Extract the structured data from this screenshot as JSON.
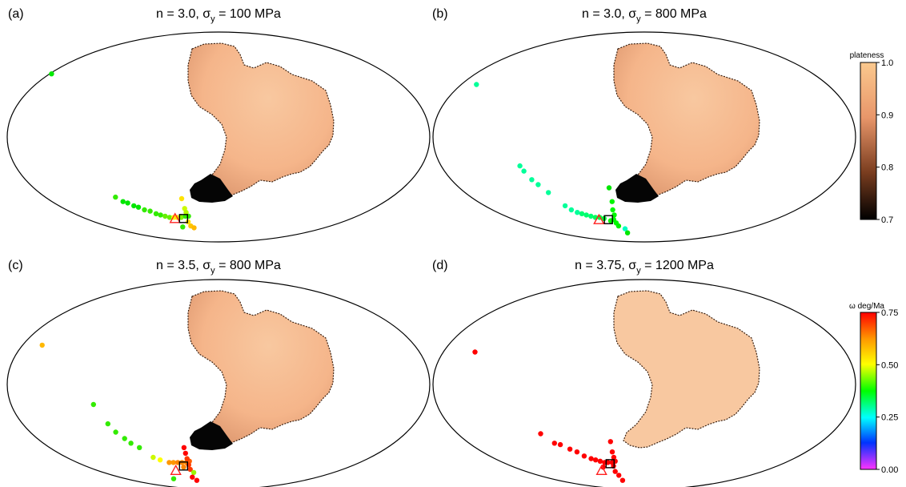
{
  "colors": {
    "plate_fill": "#f5b58a",
    "plate_light": "#f8c8a0",
    "plate_shadow": "#c9835a",
    "boundary": "#000000",
    "triangle": "#ff2020",
    "square_fill": "#00c8c8",
    "plateness_top": "#f8c68c",
    "plateness_bottom": "#000000"
  },
  "chart_data": [
    {
      "type": "map",
      "panel": "(a)",
      "title_prefix": "n = 3.0, σ",
      "title_sub": "y",
      "title_suffix": " = 100 MPa",
      "has_dark_region": true,
      "pole_points": [
        {
          "lon": -150,
          "lat": 37,
          "omega": 0.48
        },
        {
          "lon": -92,
          "lat": -35,
          "omega": 0.52
        },
        {
          "lon": -86,
          "lat": -38,
          "omega": 0.5
        },
        {
          "lon": -82,
          "lat": -39,
          "omega": 0.5
        },
        {
          "lon": -77,
          "lat": -41,
          "omega": 0.5
        },
        {
          "lon": -73,
          "lat": -42,
          "omega": 0.5
        },
        {
          "lon": -68,
          "lat": -44,
          "omega": 0.52
        },
        {
          "lon": -63,
          "lat": -45,
          "omega": 0.52
        },
        {
          "lon": -58,
          "lat": -47,
          "omega": 0.52
        },
        {
          "lon": -54,
          "lat": -48,
          "omega": 0.52
        },
        {
          "lon": -50,
          "lat": -49,
          "omega": 0.54
        },
        {
          "lon": -46,
          "lat": -50,
          "omega": 0.54
        },
        {
          "lon": -42,
          "lat": -50,
          "omega": 0.6
        },
        {
          "lon": -39,
          "lat": -50,
          "omega": 0.62
        },
        {
          "lon": -35,
          "lat": -50,
          "omega": 0.55
        },
        {
          "lon": -31,
          "lat": -49,
          "omega": 0.52
        },
        {
          "lon": -28,
          "lat": -49,
          "omega": 0.52
        },
        {
          "lon": -33,
          "lat": -36,
          "omega": 0.62
        },
        {
          "lon": -31,
          "lat": -43,
          "omega": 0.58
        },
        {
          "lon": -30,
          "lat": -46,
          "omega": 0.57
        },
        {
          "lon": -29,
          "lat": -54,
          "omega": 0.62
        },
        {
          "lon": -27,
          "lat": -58,
          "omega": 0.64
        },
        {
          "lon": -24,
          "lat": -60,
          "omega": 0.65
        },
        {
          "lon": -35,
          "lat": -59,
          "omega": 0.52
        }
      ],
      "triangle": {
        "lon": -41,
        "lat": -51
      },
      "square": {
        "lon": -33,
        "lat": -51
      }
    },
    {
      "type": "map",
      "panel": "(b)",
      "title_prefix": "n = 3.0, σ",
      "title_sub": "y",
      "title_suffix": " = 800 MPa",
      "has_dark_region": true,
      "pole_points": [
        {
          "lon": -148,
          "lat": 30,
          "omega": 0.3
        },
        {
          "lon": -107,
          "lat": -16,
          "omega": 0.3
        },
        {
          "lon": -104,
          "lat": -19,
          "omega": 0.3
        },
        {
          "lon": -98,
          "lat": -24,
          "omega": 0.3
        },
        {
          "lon": -93,
          "lat": -27,
          "omega": 0.3
        },
        {
          "lon": -85,
          "lat": -32,
          "omega": 0.3
        },
        {
          "lon": -72,
          "lat": -41,
          "omega": 0.3
        },
        {
          "lon": -67,
          "lat": -44,
          "omega": 0.3
        },
        {
          "lon": -62,
          "lat": -46,
          "omega": 0.3
        },
        {
          "lon": -58,
          "lat": -47,
          "omega": 0.32
        },
        {
          "lon": -54,
          "lat": -48,
          "omega": 0.32
        },
        {
          "lon": -50,
          "lat": -49,
          "omega": 0.32
        },
        {
          "lon": -46,
          "lat": -50,
          "omega": 0.33
        },
        {
          "lon": -42,
          "lat": -50,
          "omega": 0.34
        },
        {
          "lon": -38,
          "lat": -51,
          "omega": 0.35
        },
        {
          "lon": -31,
          "lat": -29,
          "omega": 0.5
        },
        {
          "lon": -29,
          "lat": -38,
          "omega": 0.42
        },
        {
          "lon": -29,
          "lat": -44,
          "omega": 0.4
        },
        {
          "lon": -28,
          "lat": -48,
          "omega": 0.42
        },
        {
          "lon": -29,
          "lat": -52,
          "omega": 0.4
        },
        {
          "lon": -27,
          "lat": -55,
          "omega": 0.4
        },
        {
          "lon": -25,
          "lat": -58,
          "omega": 0.45
        },
        {
          "lon": -19,
          "lat": -61,
          "omega": 0.28
        },
        {
          "lon": -17,
          "lat": -66,
          "omega": 0.5
        },
        {
          "lon": -32,
          "lat": -53,
          "omega": 0.38
        }
      ],
      "triangle": {
        "lon": -43,
        "lat": -52
      },
      "square": {
        "lon": -34,
        "lat": -52
      }
    },
    {
      "type": "map",
      "panel": "(c)",
      "title_prefix": "n = 3.5, σ",
      "title_sub": "y",
      "title_suffix": " = 800 MPa",
      "has_dark_region": true,
      "pole_points": [
        {
          "lon": -153,
          "lat": 22,
          "omega": 0.65
        },
        {
          "lon": -107,
          "lat": -11,
          "omega": 0.52
        },
        {
          "lon": -96,
          "lat": -22,
          "omega": 0.52
        },
        {
          "lon": -90,
          "lat": -27,
          "omega": 0.52
        },
        {
          "lon": -83,
          "lat": -31,
          "omega": 0.52
        },
        {
          "lon": -78,
          "lat": -34,
          "omega": 0.52
        },
        {
          "lon": -71,
          "lat": -37,
          "omega": 0.52
        },
        {
          "lon": -60,
          "lat": -44,
          "omega": 0.58
        },
        {
          "lon": -54,
          "lat": -46,
          "omega": 0.6
        },
        {
          "lon": -46,
          "lat": -48,
          "omega": 0.67
        },
        {
          "lon": -42,
          "lat": -48,
          "omega": 0.67
        },
        {
          "lon": -38,
          "lat": -48,
          "omega": 0.68
        },
        {
          "lon": -34,
          "lat": -48,
          "omega": 0.68
        },
        {
          "lon": -30,
          "lat": -48,
          "omega": 0.68
        },
        {
          "lon": -27,
          "lat": -47,
          "omega": 0.7
        },
        {
          "lon": -31,
          "lat": -37,
          "omega": 0.75
        },
        {
          "lon": -30,
          "lat": -41,
          "omega": 0.75
        },
        {
          "lon": -29,
          "lat": -45,
          "omega": 0.72
        },
        {
          "lon": -28,
          "lat": -50,
          "omega": 0.72
        },
        {
          "lon": -27,
          "lat": -54,
          "omega": 0.72
        },
        {
          "lon": -24,
          "lat": -57,
          "omega": 0.56
        },
        {
          "lon": -26,
          "lat": -62,
          "omega": 0.75
        },
        {
          "lon": -22,
          "lat": -66,
          "omega": 0.75
        },
        {
          "lon": -45,
          "lat": -64,
          "omega": 0.52
        },
        {
          "lon": -33,
          "lat": -52,
          "omega": 0.68
        }
      ],
      "triangle": {
        "lon": -41,
        "lat": -55
      },
      "square": {
        "lon": -33,
        "lat": -51
      }
    },
    {
      "type": "map",
      "panel": "(d)",
      "title_prefix": "n = 3.75, σ",
      "title_sub": "y",
      "title_suffix": " = 1200 MPa",
      "has_dark_region": false,
      "pole_points": [
        {
          "lon": -146,
          "lat": 18,
          "omega": 0.75
        },
        {
          "lon": -91,
          "lat": -28,
          "omega": 0.75
        },
        {
          "lon": -80,
          "lat": -34,
          "omega": 0.75
        },
        {
          "lon": -75,
          "lat": -35,
          "omega": 0.75
        },
        {
          "lon": -67,
          "lat": -38,
          "omega": 0.75
        },
        {
          "lon": -61,
          "lat": -40,
          "omega": 0.75
        },
        {
          "lon": -55,
          "lat": -43,
          "omega": 0.75
        },
        {
          "lon": -49,
          "lat": -45,
          "omega": 0.75
        },
        {
          "lon": -45,
          "lat": -46,
          "omega": 0.75
        },
        {
          "lon": -41,
          "lat": -47,
          "omega": 0.75
        },
        {
          "lon": -37,
          "lat": -48,
          "omega": 0.75
        },
        {
          "lon": -34,
          "lat": -48,
          "omega": 0.75
        },
        {
          "lon": -30,
          "lat": -48,
          "omega": 0.75
        },
        {
          "lon": -27,
          "lat": -47,
          "omega": 0.75
        },
        {
          "lon": -30,
          "lat": -33,
          "omega": 0.75
        },
        {
          "lon": -29,
          "lat": -40,
          "omega": 0.75
        },
        {
          "lon": -28,
          "lat": -44,
          "omega": 0.75
        },
        {
          "lon": -29,
          "lat": -51,
          "omega": 0.75
        },
        {
          "lon": -28,
          "lat": -56,
          "omega": 0.75
        },
        {
          "lon": -25,
          "lat": -60,
          "omega": 0.75
        },
        {
          "lon": -22,
          "lat": -66,
          "omega": 0.75
        },
        {
          "lon": -39,
          "lat": -52,
          "omega": 0.75
        }
      ],
      "triangle": {
        "lon": -41,
        "lat": -55
      },
      "square": {
        "lon": -32,
        "lat": -49
      }
    }
  ],
  "colorbars": {
    "plateness": {
      "label": "plateness",
      "range": [
        0.7,
        1.0
      ],
      "ticks": [
        "1.0",
        "0.9",
        "0.8",
        "0.7"
      ],
      "tick_values": [
        1.0,
        0.9,
        0.8,
        0.7
      ]
    },
    "omega": {
      "label": "ω deg/Ma",
      "range": [
        0.0,
        0.75
      ],
      "ticks": [
        "0.75",
        "0.50",
        "0.25",
        "0.00"
      ],
      "tick_values": [
        0.75,
        0.5,
        0.25,
        0.0
      ]
    }
  }
}
